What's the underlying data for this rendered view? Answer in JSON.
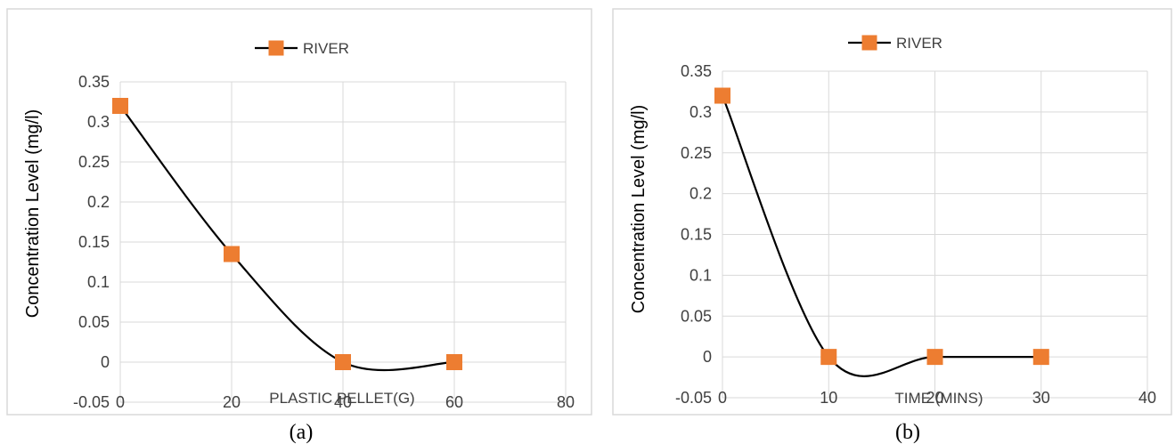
{
  "colors": {
    "series_line": "#000000",
    "marker": "#ED7D31",
    "grid": "#d9d9d9",
    "text": "#404040"
  },
  "chart_data": [
    {
      "type": "line",
      "caption": "(a)",
      "legend": {
        "position": "top-center",
        "entries": [
          "RIVER"
        ]
      },
      "xlabel": "PLASTIC PELLET(G)",
      "ylabel": "Concentration Level (mg/l)",
      "xlim": [
        0,
        80
      ],
      "ylim": [
        -0.05,
        0.35
      ],
      "x_ticks": [
        "0",
        "20",
        "40",
        "60",
        "80"
      ],
      "y_ticks": [
        "-0.05",
        "0",
        "0.05",
        "0.1",
        "0.15",
        "0.2",
        "0.25",
        "0.3",
        "0.35"
      ],
      "grid": true,
      "smooth": true,
      "series": [
        {
          "name": "RIVER",
          "x": [
            0,
            20,
            40,
            60
          ],
          "y": [
            0.32,
            0.135,
            0.0,
            0.0
          ]
        }
      ]
    },
    {
      "type": "line",
      "caption": "(b)",
      "legend": {
        "position": "top-center",
        "entries": [
          "RIVER"
        ]
      },
      "xlabel": "TIME (MINS)",
      "ylabel": "Concentration Level (mg/l)",
      "xlim": [
        0,
        40
      ],
      "ylim": [
        -0.05,
        0.35
      ],
      "x_ticks": [
        "0",
        "10",
        "20",
        "30",
        "40"
      ],
      "y_ticks": [
        "-0.05",
        "0",
        "0.05",
        "0.1",
        "0.15",
        "0.2",
        "0.25",
        "0.3",
        "0.35"
      ],
      "grid": true,
      "smooth": true,
      "series": [
        {
          "name": "RIVER",
          "x": [
            0,
            10,
            20,
            30
          ],
          "y": [
            0.32,
            0.0,
            0.0,
            0.0
          ]
        }
      ]
    }
  ]
}
